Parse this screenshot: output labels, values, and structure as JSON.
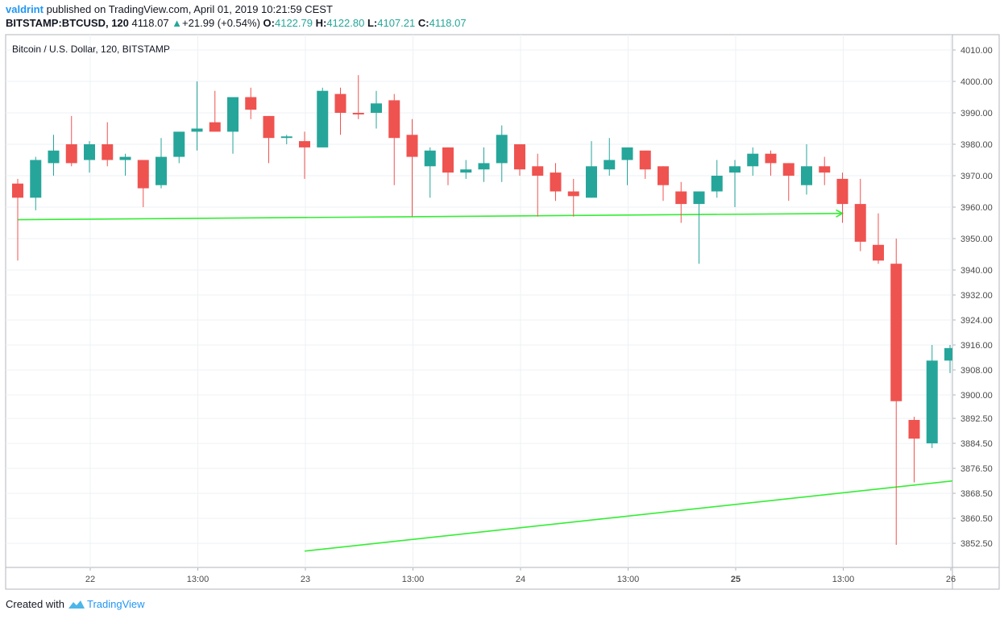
{
  "header": {
    "author": "valdrint",
    "published_text": "published on TradingView.com, April 01, 2019 10:21:59 CEST",
    "symbol": "BITSTAMP:BTCUSD, 120",
    "last": "4118.07",
    "change_arrow": "▲",
    "change": "+21.99 (+0.54%)",
    "o_label": "O:",
    "o_value": "4122.79",
    "h_label": "H:",
    "h_value": "4122.80",
    "l_label": "L:",
    "l_value": "4107.21",
    "c_label": "C:",
    "c_value": "4118.07"
  },
  "footer": {
    "created_with": "Created with",
    "brand": "TradingView"
  },
  "colors": {
    "up": "#26a69a",
    "down": "#ef5350",
    "trendline": "#33ee33",
    "grid": "#eef1f4",
    "axis": "#787b86"
  },
  "chart_data": {
    "type": "candlestick",
    "title": "Bitcoin / U.S. Dollar, 120, BITSTAMP",
    "price_scale_labels": [
      "4010.00",
      "4000.00",
      "3990.00",
      "3980.00",
      "3970.00",
      "3960.00",
      "3950.00",
      "3940.00",
      "3932.00",
      "3924.00",
      "3916.00",
      "3908.00",
      "3900.00",
      "3892.50",
      "3884.50",
      "3876.50",
      "3868.50",
      "3860.50",
      "3852.50"
    ],
    "time_labels": [
      "22",
      "13:00",
      "23",
      "13:00",
      "24",
      "13:00",
      "25",
      "13:00",
      "26"
    ],
    "time_label_bold": [
      false,
      false,
      false,
      false,
      false,
      false,
      true,
      false,
      false
    ],
    "time_label_bar_index": [
      4.0,
      10.0,
      16.0,
      22.0,
      28.0,
      34.0,
      40.0,
      46.0,
      52.0
    ],
    "candles": [
      {
        "o": 3967.5,
        "h": 3969,
        "l": 3943,
        "c": 3963
      },
      {
        "o": 3963,
        "h": 3976,
        "l": 3959,
        "c": 3975
      },
      {
        "o": 3974,
        "h": 3983,
        "l": 3970,
        "c": 3978
      },
      {
        "o": 3980,
        "h": 3989,
        "l": 3973,
        "c": 3974
      },
      {
        "o": 3975,
        "h": 3981,
        "l": 3971,
        "c": 3980
      },
      {
        "o": 3980,
        "h": 3987,
        "l": 3973,
        "c": 3975
      },
      {
        "o": 3975,
        "h": 3977,
        "l": 3970,
        "c": 3976
      },
      {
        "o": 3975,
        "h": 3975,
        "l": 3960,
        "c": 3966
      },
      {
        "o": 3967,
        "h": 3982,
        "l": 3966,
        "c": 3976
      },
      {
        "o": 3976,
        "h": 3984,
        "l": 3974,
        "c": 3984
      },
      {
        "o": 3984,
        "h": 4000,
        "l": 3978,
        "c": 3985
      },
      {
        "o": 3987,
        "h": 3997,
        "l": 3984,
        "c": 3984
      },
      {
        "o": 3984,
        "h": 3995,
        "l": 3977,
        "c": 3995
      },
      {
        "o": 3995,
        "h": 3998,
        "l": 3988,
        "c": 3991
      },
      {
        "o": 3989,
        "h": 3989,
        "l": 3974,
        "c": 3982
      },
      {
        "o": 3982,
        "h": 3983,
        "l": 3980,
        "c": 3982.5
      },
      {
        "o": 3981,
        "h": 3984,
        "l": 3969,
        "c": 3979
      },
      {
        "o": 3979,
        "h": 3998,
        "l": 3979,
        "c": 3997
      },
      {
        "o": 3996,
        "h": 3998,
        "l": 3983,
        "c": 3990
      },
      {
        "o": 3990,
        "h": 4002,
        "l": 3988,
        "c": 3989.5
      },
      {
        "o": 3990,
        "h": 3997,
        "l": 3985,
        "c": 3993
      },
      {
        "o": 3994,
        "h": 3996,
        "l": 3967,
        "c": 3982
      },
      {
        "o": 3983,
        "h": 3988,
        "l": 3957,
        "c": 3976
      },
      {
        "o": 3973,
        "h": 3979,
        "l": 3963,
        "c": 3978
      },
      {
        "o": 3979,
        "h": 3979,
        "l": 3967,
        "c": 3971
      },
      {
        "o": 3971,
        "h": 3975,
        "l": 3969,
        "c": 3972
      },
      {
        "o": 3972,
        "h": 3979,
        "l": 3968,
        "c": 3974
      },
      {
        "o": 3974,
        "h": 3986,
        "l": 3968,
        "c": 3983
      },
      {
        "o": 3980,
        "h": 3980,
        "l": 3970,
        "c": 3972
      },
      {
        "o": 3973,
        "h": 3977,
        "l": 3957,
        "c": 3970
      },
      {
        "o": 3971,
        "h": 3974,
        "l": 3962,
        "c": 3965
      },
      {
        "o": 3965,
        "h": 3969,
        "l": 3957,
        "c": 3963.5
      },
      {
        "o": 3963,
        "h": 3981,
        "l": 3963,
        "c": 3973
      },
      {
        "o": 3972,
        "h": 3982,
        "l": 3970,
        "c": 3975
      },
      {
        "o": 3975,
        "h": 3979,
        "l": 3967,
        "c": 3979
      },
      {
        "o": 3978,
        "h": 3978,
        "l": 3969,
        "c": 3972
      },
      {
        "o": 3973,
        "h": 3973,
        "l": 3962,
        "c": 3967
      },
      {
        "o": 3965,
        "h": 3968,
        "l": 3955,
        "c": 3961
      },
      {
        "o": 3961,
        "h": 3965,
        "l": 3942,
        "c": 3965
      },
      {
        "o": 3965,
        "h": 3975,
        "l": 3963,
        "c": 3970
      },
      {
        "o": 3971,
        "h": 3975,
        "l": 3960,
        "c": 3973
      },
      {
        "o": 3973,
        "h": 3979,
        "l": 3970,
        "c": 3977
      },
      {
        "o": 3977,
        "h": 3978,
        "l": 3970,
        "c": 3974
      },
      {
        "o": 3974,
        "h": 3974,
        "l": 3962,
        "c": 3970
      },
      {
        "o": 3967,
        "h": 3980,
        "l": 3964,
        "c": 3973
      },
      {
        "o": 3973,
        "h": 3976,
        "l": 3967,
        "c": 3971
      },
      {
        "o": 3969,
        "h": 3971,
        "l": 3955,
        "c": 3961
      },
      {
        "o": 3961,
        "h": 3969,
        "l": 3946,
        "c": 3949
      },
      {
        "o": 3948,
        "h": 3958,
        "l": 3942,
        "c": 3943
      },
      {
        "o": 3942,
        "h": 3950,
        "l": 3852,
        "c": 3898
      },
      {
        "o": 3892,
        "h": 3893,
        "l": 3872,
        "c": 3886
      },
      {
        "o": 3884.5,
        "h": 3916,
        "l": 3883,
        "c": 3911
      },
      {
        "o": 3911,
        "h": 3916,
        "l": 3907,
        "c": 3915
      }
    ],
    "trendlines": [
      {
        "from": {
          "bar": 0,
          "price": 3956
        },
        "to": {
          "bar": 46,
          "price": 3958
        },
        "arrow": true
      },
      {
        "from": {
          "bar": 16,
          "price": 3850
        },
        "to": {
          "bar": 53,
          "price": 3873
        },
        "arrow": false
      }
    ]
  }
}
